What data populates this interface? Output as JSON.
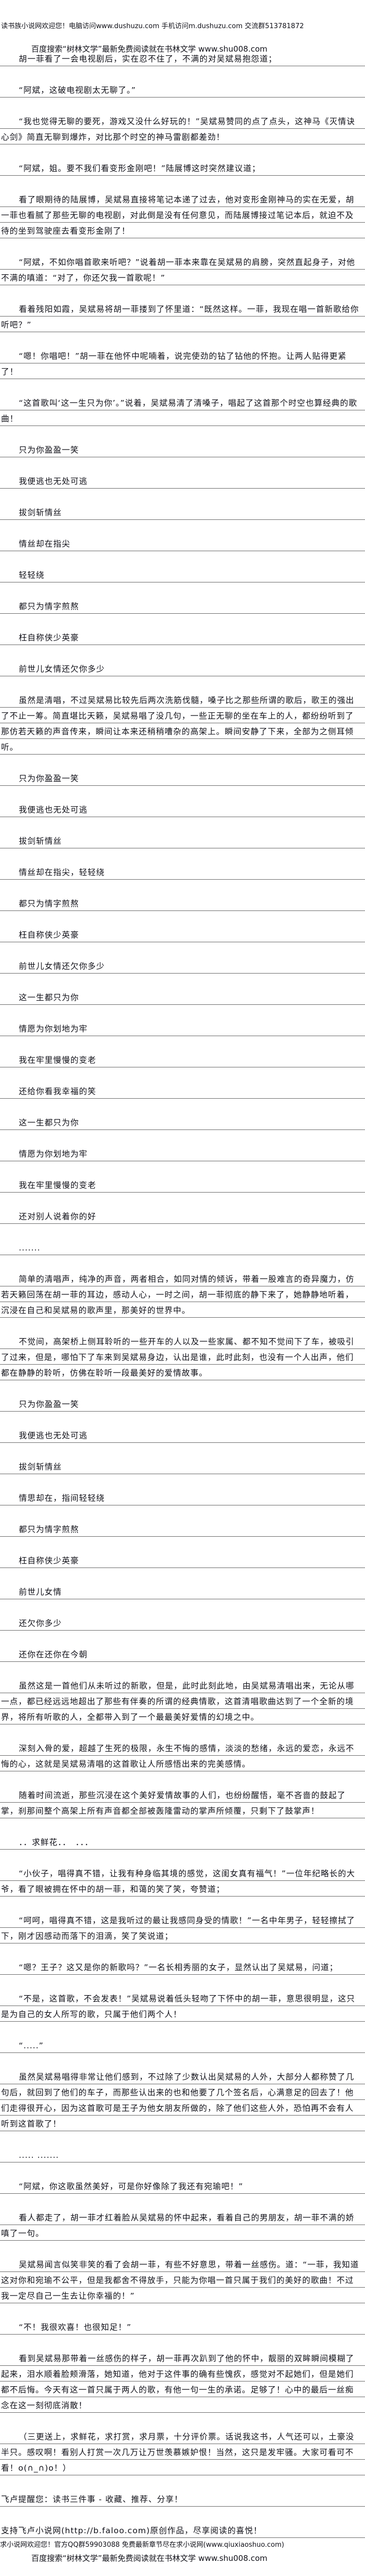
{
  "header": {
    "site_notice": "读书族小说网欢迎您！电脑访问www.dushuzu.com 手机访问m.dushuzu.com 交流群513781872",
    "search_promo": "百度搜索“树林文学”最新免费阅读就在书林文学 www.shu008.com"
  },
  "body": {
    "paragraphs": [
      "胡一菲看了一会电视剧后，实在忍不住了，不满的对吴斌易抱怨道；",
      "“阿斌，这破电视剧太无聊了。”",
      "“我也觉得无聊的要死，游戏又没什么好玩的！”吴斌易赞同的点了点头，这神马《灭情诀心剑》简直无聊到爆炸，对比那个时空的神马雷剧都差劲！",
      "“阿斌，姐。要不我们看变形金刚吧！”陆展博这时突然建议道；",
      "看了眼期待的陆展博，吴斌易直接将笔记本递了过去，他对变形金刚神马的实在无爱，胡一菲也看腻了那些无聊的电视剧，对此倒是没有任何意见，而陆展博接过笔记本后，就迫不及待的坐到驾驶座去看变形金刚了！",
      "“阿斌，不如你唱首歌来听吧？”说着胡一菲本来靠在吴斌易的肩膀，突然直起身子，对他不满的嗔道：“对了，你还欠我一首歌呢！”",
      "看着残阳如霞，吴斌易将胡一菲搂到了怀里道：“既然这样。一菲，我现在唱一首新歌给你听吧？”",
      "“嗯！你唱吧！”胡一菲在他怀中呢喃着，说完使劲的钻了钻他的怀抱。让两人贴得更紧了！",
      "“这首歌叫‘这一生只为你’。”说着，吴斌易清了清嗓子，唱起了这首那个时空也算经典的歌曲！",
      "只为你盈盈一笑",
      "我便逃也无处可逃",
      "拔剑斩情丝",
      "情丝却在指尖",
      "轻轻绕",
      "都只为情字煎熬",
      "枉自称侠少英豪",
      "前世儿女情还欠你多少",
      "虽然是清唱，不过吴斌易比较先后两次洗筋伐髓，嗓子比之那些所谓的歌后，歌王的强出了不止一筹。简直堪比天籁，吴斌易唱了没几句，一些正无聊的坐在车上的人，都纷纷听到了那仿若天籁的声音传来，瞬间让本来还稍稍嘈杂的高架上。瞬间安静了下来，全部为之侧耳倾听。",
      "只为你盈盈一笑",
      "我便逃也无处可逃",
      "拔剑斩情丝",
      "情丝却在指尖，轻轻绕",
      "都只为情字煎熬",
      "枉自称侠少英豪",
      "前世儿女情还欠你多少",
      "这一生都只为你",
      "情愿为你划地为牢",
      "我在牢里慢慢的变老",
      "还给你看我幸福的笑",
      "这一生都只为你",
      "情愿为你划地为牢",
      "我在牢里慢慢的变老",
      "还对别人说着你的好",
      ".......",
      "简单的清唱声，纯净的声音，两者相合，如同对情的倾诉，带着一股难言的奇异魔力，仿若天籁回荡在胡一菲的耳边，感动人心，一时之间，胡一菲彻底的静下来了，她静静地听着，沉浸在自己和吴斌易的歌声里，那美好的世界中。",
      "不觉间，高架桥上侧耳聆听的一些开车的人以及一些家属、都不知不觉间下了车，被吸引了过来，但是，哪怕下了车来到吴斌易身边，认出是谁，此时此刻，也没有一个人出声，他们都在静静的聆听，仿佛在聆听一段最美好的爱情故事。",
      "只为你盈盈一笑",
      "我便逃也无处可逃",
      "拔剑斩情丝",
      "情思却在，指间轻轻绕",
      "都只为情字煎熬",
      "枉自称侠少英豪",
      "前世儿女情",
      "还欠你多少",
      "还你在还你在今朝",
      "虽然这是一首他们从未听过的新歌，但是，此时此刻此地，由吴斌易清唱出来，无论从哪一点，都已经远远地超出了那些有伴奏的所谓的经典情歌，这首清唱歌曲达到了一个全新的境界，将所有听歌的人，全都带入到了一个最最美好爱情的幻境之中。",
      "深刻入骨的爱，超越了生死的极限，永生不悔的感情，淡淡的愁绪，永远的爱恋，永远不悔的心，这就是吴斌易清唱的这首歌让人所感悟出来的完美感情。",
      "随着时间流逝，那些沉浸在这个美好爱情故事的人们，也纷纷醒悟，毫不吝啬的鼓起了掌，刹那间整个高架上所有声音都全部被轰隆雷动的掌声所倾覆，只剩下了鼓掌声！",
      "．．求鲜花．．　．．．",
      "“小伙子，唱得真不错，让我有种身临其境的感觉，这闺女真有福气！”一位年纪略长的大爷，看了眼被拥在怀中的胡一菲，和蔼的笑了笑，夸赞道；",
      "“呵呵，唱得真不错，这是我听过的最让我感同身受的情歌！”一名中年男子，轻轻擦拭了下，刚才因感动而落下的泪滴，笑了笑说道；",
      "“嗯？王子？这又是你的新歌吗？”一名长相秀丽的女子，显然认出了吴斌易，问道；",
      "“不是，这首歌，不会发表！”吴斌易说着低头轻吻了下怀中的胡一菲，意思很明显，这只是为自己的女人所写的歌，只属于他们两个人！",
      "“.....”",
      "虽然吴斌易唱得非常让他们感到，不过除了少数认出吴斌易的人外，大部分人都称赞了几句后，就回到了他们的车子，而那些认出来的也和他要了几个签名后，心满意足的回去了！他们走得很开心，因为这首歌可是王子为他女朋友所做的，除了他们这些人外，恐怕再不会有人听到这首歌了！",
      "..... .......",
      "“阿斌，你这歌虽然美好，可是你好像除了我还有宛瑜吧！”",
      "看人都走了，胡一菲才红着脸从吴斌易的怀中起来，看着自己的男朋友，胡一菲不满的娇嗔了一句。",
      "吴斌易闻言似笑非笑的看了会胡一菲，有些不好意思，带着一丝感伤。道：“一菲，我知道这对你和宛瑜不公平，但是我都舍不得放手，只能为你唱一首只属于我们的美好的歌曲！不过我一定尽自己一生去让你幸福的！”",
      "“不！我很欢喜！也很知足！”",
      "看到吴斌易那带着一丝感伤的样子，胡一菲再次趴到了他的怀中，靓丽的双眸瞬间模糊了起来，泪水顺着脸颊滑落，她知道，他对于这件事的确有些愧疚，感觉对不起她们，但是她们都不后悔。今天有这一首只属于两人的歌，有他一句一生的承诺。足够了！心中的最后一丝痴念在这一刻彻底消散！",
      "（三更送上，求鲜花，求打赏，求月票，十分评价票。话说我这书，人气还可以，土豪没半只。感叹啊！看别人打赏一次几万让万世羡慕嫉妒恨！当然，这只是发牢骚。大家可看可不看！o(∩_∩)o！）"
    ],
    "plain_lines": [
      "飞卢提醒您：读书三件事 - 收藏、推荐、分享！",
      "支持飞卢小说网(http://b.faloo.com)原创作品，尽享阅读的喜悦！"
    ]
  },
  "footer": {
    "site_notice": "求小说网欢迎您！官方QQ群59903088 免费最新章节尽在求小说网(www.qiuxiaoshuo.com)",
    "search_promo": "百度搜索“树林文学”最新免费阅读就在书林文学 www.shu008.com"
  }
}
